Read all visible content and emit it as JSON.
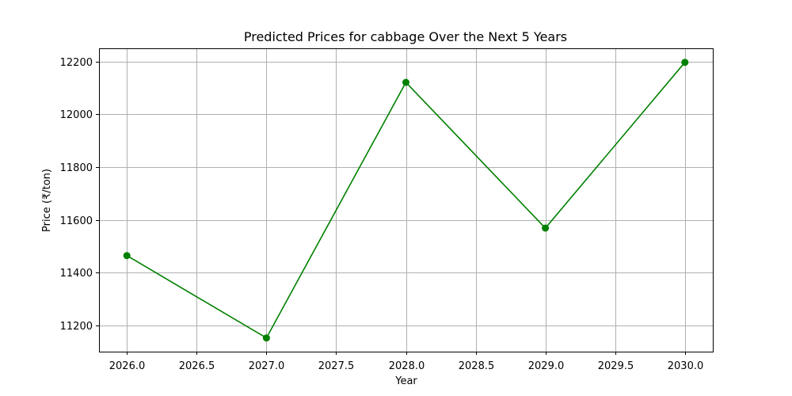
{
  "chart_data": {
    "type": "line",
    "title": "Predicted Prices for cabbage Over the Next 5 Years",
    "xlabel": "Year",
    "ylabel": "Price (₹/ton)",
    "x": [
      2026,
      2027,
      2028,
      2029,
      2030
    ],
    "series": [
      {
        "values": [
          11465,
          11153,
          12121,
          11569,
          12197
        ]
      }
    ],
    "xlim": [
      2025.8,
      2030.2
    ],
    "ylim": [
      11101,
      12250
    ],
    "xticks": [
      2026.0,
      2026.5,
      2027.0,
      2027.5,
      2028.0,
      2028.5,
      2029.0,
      2029.5,
      2030.0
    ],
    "xtick_labels": [
      "2026.0",
      "2026.5",
      "2027.0",
      "2027.5",
      "2028.0",
      "2028.5",
      "2029.0",
      "2029.5",
      "2030.0"
    ],
    "yticks": [
      11200,
      11400,
      11600,
      11800,
      12000,
      12200
    ],
    "ytick_labels": [
      "11200",
      "11400",
      "11600",
      "11800",
      "12000",
      "12200"
    ],
    "grid": true,
    "marker": "circle",
    "line_color": "#008000"
  }
}
